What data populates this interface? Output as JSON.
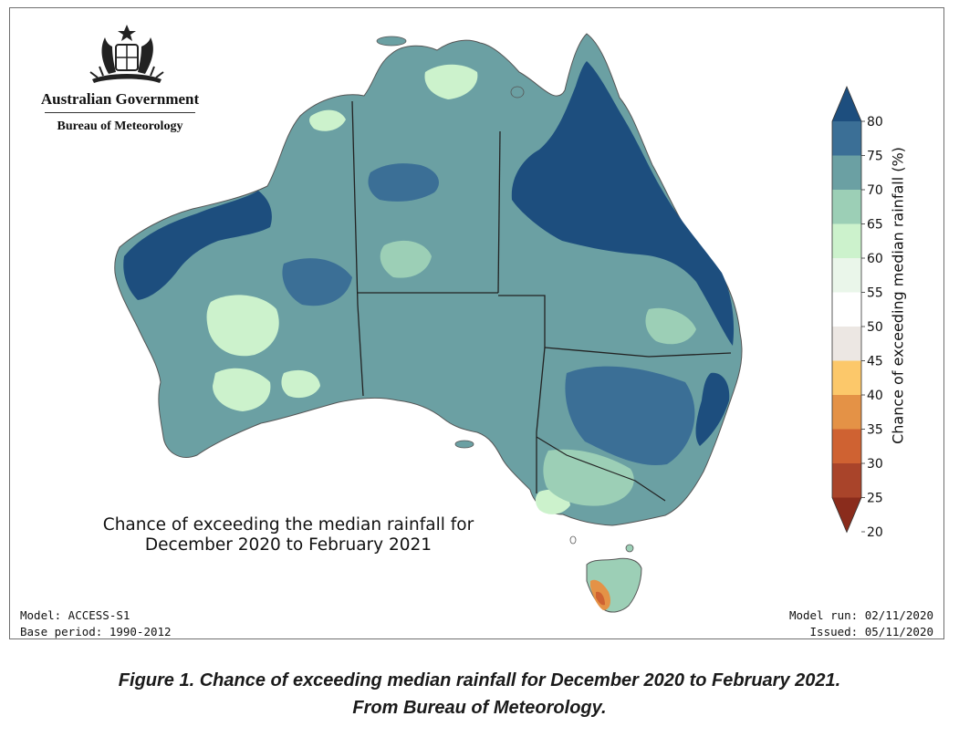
{
  "logo": {
    "government": "Australian Government",
    "bureau": "Bureau of Meteorology"
  },
  "map": {
    "title_line1": "Chance of exceeding the median rainfall for",
    "title_line2": "December 2020 to February 2021",
    "model": "Model: ACCESS-S1",
    "base_period": "Base period: 1990-2012",
    "model_run": "Model run: 02/11/2020",
    "issued": "Issued: 05/11/2020"
  },
  "colorbar": {
    "label": "Chance of exceeding median rainfall (%)",
    "ticks": [
      "80",
      "75",
      "70",
      "65",
      "60",
      "55",
      "50",
      "45",
      "40",
      "35",
      "30",
      "25",
      "20"
    ],
    "colors": [
      "#1d4e7e",
      "#3b6f96",
      "#6ba0a3",
      "#9ccfb6",
      "#ccf2cc",
      "#eaf6ea",
      "#ffffff",
      "#ece7e3",
      "#fcc86a",
      "#e49246",
      "#cf6232",
      "#a9442a",
      "#8a2c1c"
    ]
  },
  "caption": {
    "line1": "Figure 1. Chance of exceeding median rainfall for December 2020 to February 2021.",
    "line2": "From Bureau of Meteorology."
  }
}
